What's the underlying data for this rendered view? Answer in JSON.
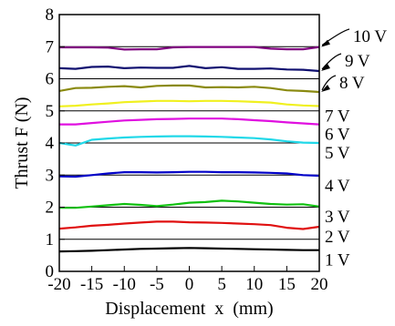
{
  "chart_data": {
    "type": "line",
    "xlabel": "Displacement  x  (mm)",
    "ylabel": "Thrust  F  (N)",
    "xlim": [
      -20,
      20
    ],
    "ylim": [
      0,
      8
    ],
    "x_ticks": [
      -20,
      -15,
      -10,
      -5,
      0,
      5,
      10,
      15,
      20
    ],
    "x_tick_labels": [
      "-20",
      "-15",
      "-10",
      "-5",
      "0",
      "5",
      "10",
      "15",
      "20"
    ],
    "y_ticks": [
      0,
      1,
      2,
      3,
      4,
      5,
      6,
      7,
      8
    ],
    "y_tick_labels": [
      "0",
      "1",
      "2",
      "3",
      "4",
      "5",
      "6",
      "7",
      "8"
    ],
    "grid": "horizontal",
    "legend": "right-edge labels",
    "x": [
      -20,
      -17.5,
      -15,
      -12.5,
      -10,
      -7.5,
      -5,
      -2.5,
      0,
      2.5,
      5,
      7.5,
      10,
      12.5,
      15,
      17.5,
      20
    ],
    "series": [
      {
        "name": "1 V",
        "color": "#000000",
        "values": [
          0.62,
          0.63,
          0.64,
          0.66,
          0.68,
          0.7,
          0.71,
          0.72,
          0.73,
          0.72,
          0.71,
          0.7,
          0.69,
          0.68,
          0.67,
          0.66,
          0.66
        ]
      },
      {
        "name": "2 V",
        "color": "#e01010",
        "values": [
          1.33,
          1.37,
          1.42,
          1.45,
          1.49,
          1.52,
          1.55,
          1.55,
          1.53,
          1.52,
          1.51,
          1.49,
          1.47,
          1.44,
          1.36,
          1.32,
          1.39
        ]
      },
      {
        "name": "3 V",
        "color": "#10c010",
        "values": [
          1.98,
          1.98,
          2.02,
          2.06,
          2.1,
          2.07,
          2.03,
          2.08,
          2.14,
          2.16,
          2.2,
          2.18,
          2.14,
          2.1,
          2.08,
          2.09,
          2.02
        ]
      },
      {
        "name": "4 V",
        "color": "#0000c8",
        "values": [
          2.96,
          2.95,
          3.0,
          3.05,
          3.09,
          3.09,
          3.08,
          3.09,
          3.1,
          3.1,
          3.09,
          3.09,
          3.08,
          3.07,
          3.05,
          3.0,
          2.98
        ]
      },
      {
        "name": "5 V",
        "color": "#20d8e8",
        "values": [
          4.0,
          3.92,
          4.1,
          4.14,
          4.17,
          4.19,
          4.2,
          4.21,
          4.21,
          4.2,
          4.19,
          4.17,
          4.15,
          4.11,
          4.05,
          4.01,
          4.0
        ]
      },
      {
        "name": "6 V",
        "color": "#e010e0",
        "values": [
          4.58,
          4.58,
          4.62,
          4.66,
          4.7,
          4.72,
          4.74,
          4.75,
          4.76,
          4.76,
          4.76,
          4.74,
          4.71,
          4.68,
          4.64,
          4.61,
          4.58
        ]
      },
      {
        "name": "7 V",
        "color": "#f0f020",
        "values": [
          5.14,
          5.16,
          5.2,
          5.23,
          5.27,
          5.29,
          5.31,
          5.31,
          5.3,
          5.31,
          5.31,
          5.3,
          5.28,
          5.26,
          5.2,
          5.17,
          5.15
        ]
      },
      {
        "name": "8 V",
        "color": "#8a8a10",
        "values": [
          5.62,
          5.71,
          5.72,
          5.75,
          5.77,
          5.73,
          5.78,
          5.79,
          5.79,
          5.73,
          5.74,
          5.73,
          5.75,
          5.71,
          5.64,
          5.62,
          5.59
        ]
      },
      {
        "name": "9 V",
        "color": "#101070",
        "values": [
          6.33,
          6.31,
          6.37,
          6.38,
          6.33,
          6.35,
          6.34,
          6.34,
          6.4,
          6.33,
          6.36,
          6.31,
          6.31,
          6.32,
          6.29,
          6.28,
          6.24
        ]
      },
      {
        "name": "10 V",
        "color": "#800080",
        "values": [
          6.98,
          6.98,
          6.98,
          6.97,
          6.91,
          6.92,
          6.92,
          6.98,
          6.99,
          6.99,
          6.99,
          6.99,
          6.99,
          6.94,
          6.92,
          6.92,
          6.99
        ]
      }
    ]
  }
}
